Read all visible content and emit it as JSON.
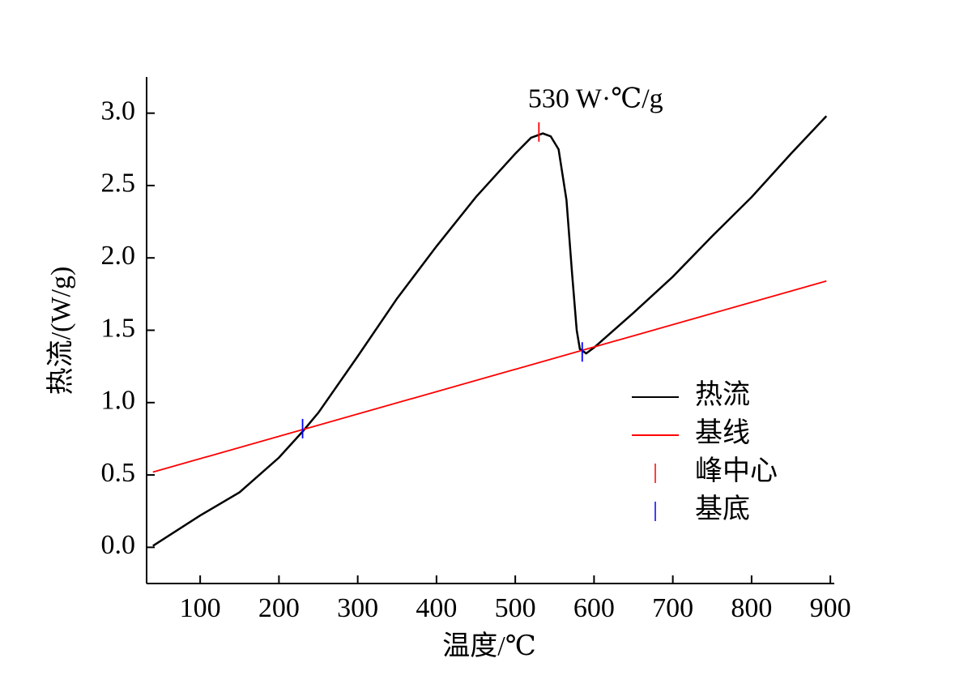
{
  "chart_data": {
    "type": "line",
    "annotation": "530 W·℃/g",
    "xlabel": "温度/℃",
    "ylabel": "热流/(W/g)",
    "xlim": [
      32,
      905
    ],
    "ylim": [
      -0.25,
      3.25
    ],
    "xticks": [
      100,
      200,
      300,
      400,
      500,
      600,
      700,
      800,
      900
    ],
    "yticks": [
      {
        "value": 0,
        "label": "0.0"
      },
      0.5,
      {
        "value": 1,
        "label": "1.0"
      },
      1.5,
      {
        "value": 2,
        "label": "2.0"
      },
      2.5,
      {
        "value": 3,
        "label": "3.0"
      }
    ],
    "legend": "lower right",
    "series": [
      {
        "name": "热流",
        "color": "#000000",
        "style": "line",
        "x": [
          40,
          60,
          100,
          150,
          200,
          230,
          250,
          300,
          350,
          400,
          450,
          500,
          520,
          535,
          545,
          555,
          565,
          572,
          578,
          582,
          590,
          600,
          650,
          700,
          750,
          800,
          850,
          895
        ],
        "values": [
          0.01,
          0.08,
          0.22,
          0.38,
          0.62,
          0.8,
          0.93,
          1.32,
          1.72,
          2.08,
          2.42,
          2.72,
          2.83,
          2.86,
          2.84,
          2.75,
          2.4,
          1.9,
          1.5,
          1.37,
          1.34,
          1.38,
          1.62,
          1.87,
          2.15,
          2.42,
          2.72,
          2.98
        ]
      },
      {
        "name": "基线",
        "color": "#ff0000",
        "style": "line",
        "x": [
          40,
          895
        ],
        "values": [
          0.52,
          1.84
        ]
      },
      {
        "name": "峰中心",
        "color": "#ff0000",
        "style": "tick",
        "x": [
          530
        ],
        "values": [
          2.87
        ]
      },
      {
        "name": "基底",
        "color": "#0000ff",
        "style": "tick",
        "x": [
          230,
          585
        ],
        "values": [
          0.82,
          1.35
        ]
      }
    ]
  }
}
